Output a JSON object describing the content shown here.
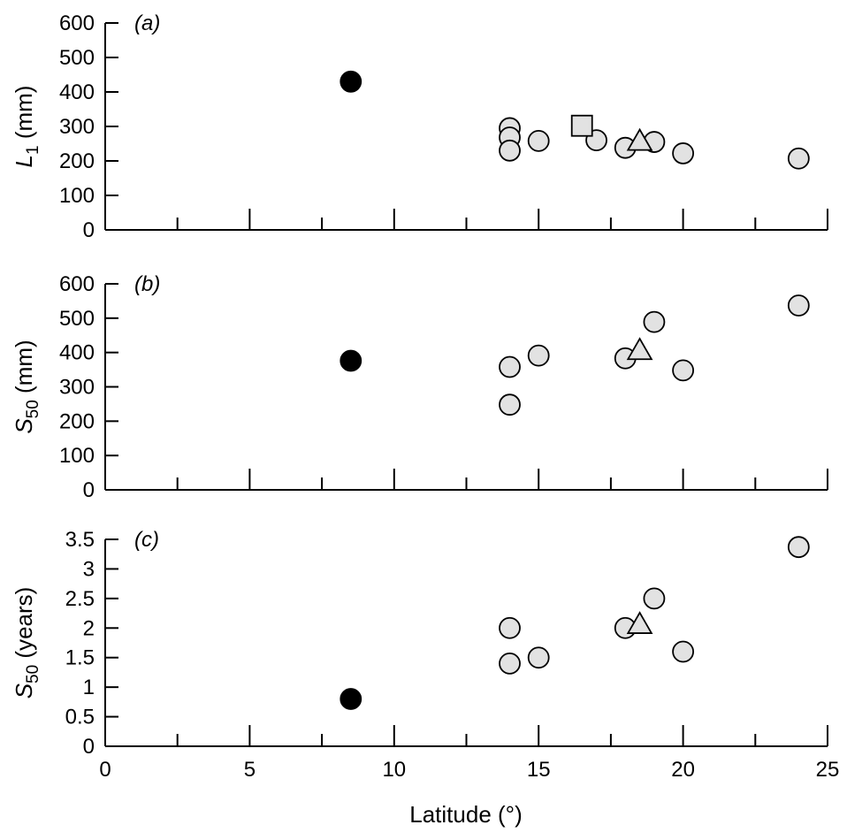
{
  "chart_data": [
    {
      "panel": "(a)",
      "panel_letter": "a",
      "type": "scatter",
      "ylabel": {
        "main": "L",
        "sub": "1",
        "unit": " (mm)"
      },
      "ylim": [
        0,
        600
      ],
      "yticks": [
        0,
        100,
        200,
        300,
        400,
        500,
        600
      ],
      "ytick_labels": [
        "0",
        "100",
        "200",
        "300",
        "400",
        "500",
        "600"
      ],
      "series": [
        {
          "marker": "filled-circle",
          "color": "#000000",
          "points": [
            [
              8.5,
              430
            ]
          ]
        },
        {
          "marker": "circle",
          "color": "#e2e2e2",
          "points": [
            [
              14,
              295
            ],
            [
              14,
              268
            ],
            [
              14,
              230
            ],
            [
              15,
              258
            ],
            [
              17,
              260
            ],
            [
              18,
              238
            ],
            [
              19,
              255
            ],
            [
              20,
              222
            ],
            [
              24,
              207
            ]
          ]
        },
        {
          "marker": "square",
          "color": "#e2e2e2",
          "points": [
            [
              16.5,
              302
            ]
          ]
        },
        {
          "marker": "triangle",
          "color": "#e2e2e2",
          "points": [
            [
              18.5,
              255
            ]
          ]
        }
      ]
    },
    {
      "panel": "(b)",
      "panel_letter": "b",
      "type": "scatter",
      "ylabel": {
        "main": "S",
        "sub": "50",
        "unit": " (mm)"
      },
      "ylim": [
        0,
        600
      ],
      "yticks": [
        0,
        100,
        200,
        300,
        400,
        500,
        600
      ],
      "ytick_labels": [
        "0",
        "100",
        "200",
        "300",
        "400",
        "500",
        "600"
      ],
      "series": [
        {
          "marker": "filled-circle",
          "color": "#000000",
          "points": [
            [
              8.5,
              376
            ]
          ]
        },
        {
          "marker": "circle",
          "color": "#e2e2e2",
          "points": [
            [
              14,
              358
            ],
            [
              14,
              248
            ],
            [
              15,
              391
            ],
            [
              18,
              383
            ],
            [
              19,
              489
            ],
            [
              20,
              348
            ],
            [
              24,
              537
            ]
          ]
        },
        {
          "marker": "triangle",
          "color": "#e2e2e2",
          "points": [
            [
              18.5,
              404
            ]
          ]
        }
      ]
    },
    {
      "panel": "(c)",
      "panel_letter": "c",
      "type": "scatter",
      "ylabel": {
        "main": "S",
        "sub": "50",
        "unit": " (years)"
      },
      "ylim": [
        0,
        3.5
      ],
      "yticks": [
        0,
        0.5,
        1,
        1.5,
        2,
        2.5,
        3,
        3.5
      ],
      "ytick_labels": [
        "0",
        "0.5",
        "1",
        "1.5",
        "2",
        "2.5",
        "3",
        "3.5"
      ],
      "xlabel": "Latitude (°)",
      "xticks": [
        0,
        5,
        10,
        15,
        20,
        25
      ],
      "xtick_labels": [
        "0",
        "5",
        "10",
        "15",
        "20",
        "25"
      ],
      "series": [
        {
          "marker": "filled-circle",
          "color": "#000000",
          "points": [
            [
              8.5,
              0.8
            ]
          ]
        },
        {
          "marker": "circle",
          "color": "#e2e2e2",
          "points": [
            [
              14,
              2.0
            ],
            [
              14,
              1.4
            ],
            [
              15,
              1.5
            ],
            [
              18,
              2.0
            ],
            [
              19,
              2.5
            ],
            [
              20,
              1.6
            ],
            [
              24,
              3.37
            ]
          ]
        },
        {
          "marker": "triangle",
          "color": "#e2e2e2",
          "points": [
            [
              18.5,
              2.05
            ]
          ]
        }
      ]
    }
  ],
  "xlim": [
    0,
    25
  ],
  "x_minor_step": 2.5
}
